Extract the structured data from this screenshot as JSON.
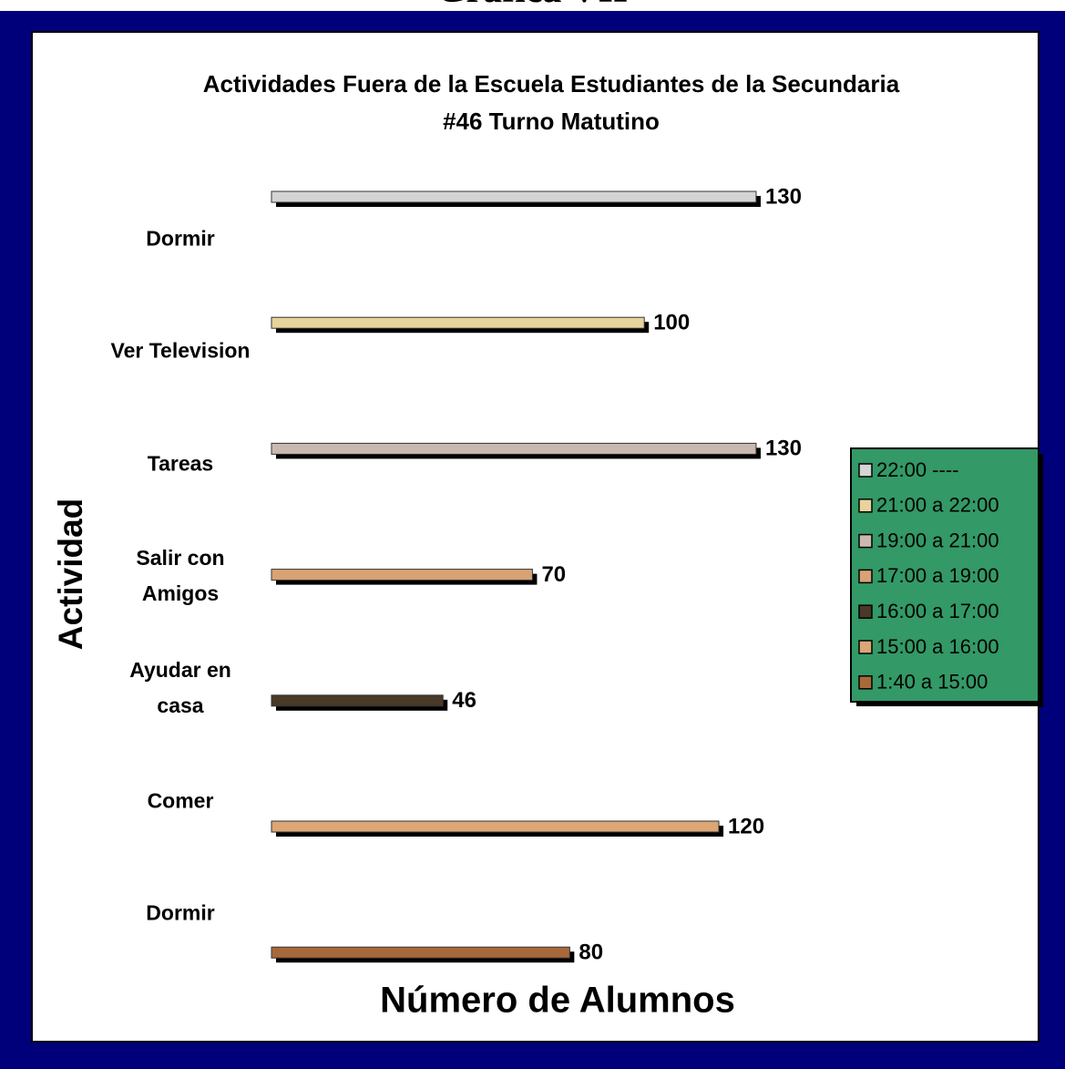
{
  "header": "Gráfica VII",
  "chart_data": {
    "type": "bar",
    "orientation": "horizontal",
    "title": "Actividades Fuera de la Escuela Estudiantes de la Secundaria #46 Turno Matutino",
    "x_label": "Número de Alumnos",
    "y_label": "Actividad",
    "categories": [
      "Dormir",
      "Ver Television",
      "Tareas",
      "Salir con Amigos",
      "Ayudar en casa",
      "Comer",
      "Dormir"
    ],
    "xlim": [
      0,
      150
    ],
    "legend": "right",
    "series": [
      {
        "name": "22:00 ----",
        "color": "#d4d4d4",
        "values": [
          130,
          null,
          null,
          null,
          null,
          null,
          null
        ]
      },
      {
        "name": "21:00 a 22:00",
        "color": "#e6d49c",
        "values": [
          null,
          100,
          null,
          null,
          null,
          null,
          null
        ]
      },
      {
        "name": "19:00 a 21:00",
        "color": "#c9b9b0",
        "values": [
          null,
          null,
          130,
          null,
          null,
          null,
          null
        ]
      },
      {
        "name": "17:00 a 19:00",
        "color": "#d9a274",
        "values": [
          null,
          null,
          null,
          70,
          null,
          null,
          null
        ]
      },
      {
        "name": "16:00 a 17:00",
        "color": "#4a3828",
        "values": [
          null,
          null,
          null,
          null,
          46,
          null,
          null
        ]
      },
      {
        "name": "15:00 a 16:00",
        "color": "#dca676",
        "values": [
          null,
          null,
          null,
          null,
          null,
          120,
          null
        ]
      },
      {
        "name": "1:40 a 15:00",
        "color": "#a8693a",
        "values": [
          null,
          null,
          null,
          null,
          null,
          null,
          80
        ]
      }
    ]
  }
}
